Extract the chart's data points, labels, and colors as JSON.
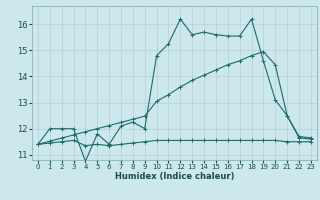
{
  "xlabel": "Humidex (Indice chaleur)",
  "bg_color": "#cce8ec",
  "grid_color": "#b8d4d8",
  "line_color": "#1a6b6b",
  "xlim": [
    -0.5,
    23.5
  ],
  "ylim": [
    10.8,
    16.7
  ],
  "yticks": [
    11,
    12,
    13,
    14,
    15,
    16
  ],
  "xticks": [
    0,
    1,
    2,
    3,
    4,
    5,
    6,
    7,
    8,
    9,
    10,
    11,
    12,
    13,
    14,
    15,
    16,
    17,
    18,
    19,
    20,
    21,
    22,
    23
  ],
  "line1_x": [
    0,
    1,
    2,
    3,
    4,
    5,
    6,
    7,
    8,
    9,
    10,
    11,
    12,
    13,
    14,
    15,
    16,
    17,
    18,
    19,
    20,
    21,
    22,
    23
  ],
  "line1_y": [
    11.4,
    12.0,
    12.0,
    12.0,
    10.75,
    11.8,
    11.4,
    12.1,
    12.25,
    12.0,
    14.8,
    15.25,
    16.2,
    15.6,
    15.7,
    15.6,
    15.55,
    15.55,
    16.2,
    14.6,
    13.1,
    12.5,
    11.7,
    11.65
  ],
  "line2_x": [
    0,
    1,
    2,
    3,
    4,
    5,
    6,
    7,
    8,
    9,
    10,
    11,
    12,
    13,
    14,
    15,
    16,
    17,
    18,
    19,
    20,
    21,
    22,
    23
  ],
  "line2_y": [
    11.4,
    11.52,
    11.64,
    11.76,
    11.88,
    12.0,
    12.12,
    12.24,
    12.36,
    12.48,
    13.05,
    13.3,
    13.6,
    13.85,
    14.05,
    14.25,
    14.45,
    14.6,
    14.8,
    14.95,
    14.45,
    12.5,
    11.65,
    11.6
  ],
  "line3_x": [
    0,
    1,
    2,
    3,
    4,
    5,
    6,
    7,
    8,
    9,
    10,
    11,
    12,
    13,
    14,
    15,
    16,
    17,
    18,
    19,
    20,
    21,
    22,
    23
  ],
  "line3_y": [
    11.4,
    11.45,
    11.5,
    11.55,
    11.35,
    11.4,
    11.35,
    11.4,
    11.45,
    11.5,
    11.55,
    11.55,
    11.55,
    11.55,
    11.55,
    11.55,
    11.55,
    11.55,
    11.55,
    11.55,
    11.55,
    11.5,
    11.5,
    11.5
  ]
}
